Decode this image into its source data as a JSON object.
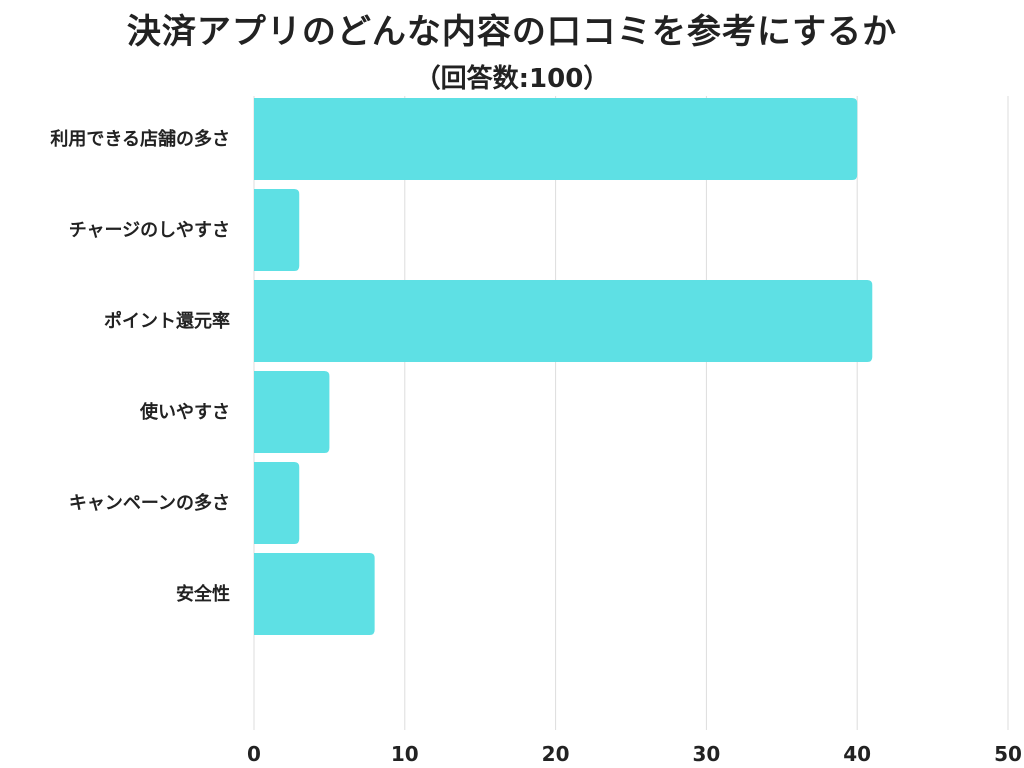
{
  "chart_data": {
    "type": "bar",
    "orientation": "horizontal",
    "title": "決済アプリのどんな内容の口コミを参考にするか",
    "subtitle": "（回答数:100）",
    "categories": [
      "利用できる店舗の多さ",
      "チャージのしやすさ",
      "ポイント還元率",
      "使いやすさ",
      "キャンペーンの多さ",
      "安全性"
    ],
    "values": [
      40,
      3,
      41,
      5,
      3,
      8
    ],
    "xlim": [
      0,
      50
    ],
    "xticks": [
      "0",
      "10",
      "20",
      "30",
      "40",
      "50"
    ],
    "grid": true,
    "bar_color": "#5ee0e4",
    "grid_color": "#dddddd"
  }
}
